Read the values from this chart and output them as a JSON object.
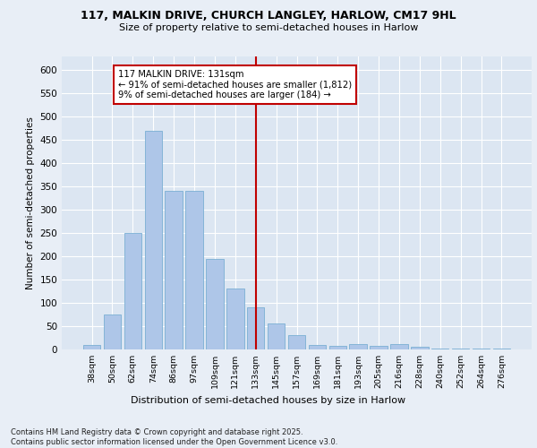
{
  "title1": "117, MALKIN DRIVE, CHURCH LANGLEY, HARLOW, CM17 9HL",
  "title2": "Size of property relative to semi-detached houses in Harlow",
  "xlabel": "Distribution of semi-detached houses by size in Harlow",
  "ylabel": "Number of semi-detached properties",
  "categories": [
    "38sqm",
    "50sqm",
    "62sqm",
    "74sqm",
    "86sqm",
    "97sqm",
    "109sqm",
    "121sqm",
    "133sqm",
    "145sqm",
    "157sqm",
    "169sqm",
    "181sqm",
    "193sqm",
    "205sqm",
    "216sqm",
    "228sqm",
    "240sqm",
    "252sqm",
    "264sqm",
    "276sqm"
  ],
  "values": [
    10,
    75,
    250,
    470,
    340,
    340,
    195,
    130,
    90,
    55,
    30,
    10,
    8,
    12,
    8,
    12,
    5,
    2,
    2,
    2,
    1
  ],
  "bar_color": "#aec6e8",
  "bar_edgecolor": "#7aafd4",
  "highlight_index": 8,
  "highlight_color": "#c00000",
  "annotation_title": "117 MALKIN DRIVE: 131sqm",
  "annotation_line1": "← 91% of semi-detached houses are smaller (1,812)",
  "annotation_line2": "9% of semi-detached houses are larger (184) →",
  "ylim": [
    0,
    630
  ],
  "yticks": [
    0,
    50,
    100,
    150,
    200,
    250,
    300,
    350,
    400,
    450,
    500,
    550,
    600
  ],
  "footnote1": "Contains HM Land Registry data © Crown copyright and database right 2025.",
  "footnote2": "Contains public sector information licensed under the Open Government Licence v3.0.",
  "bg_color": "#e8eef6",
  "plot_bg_color": "#dce6f2"
}
